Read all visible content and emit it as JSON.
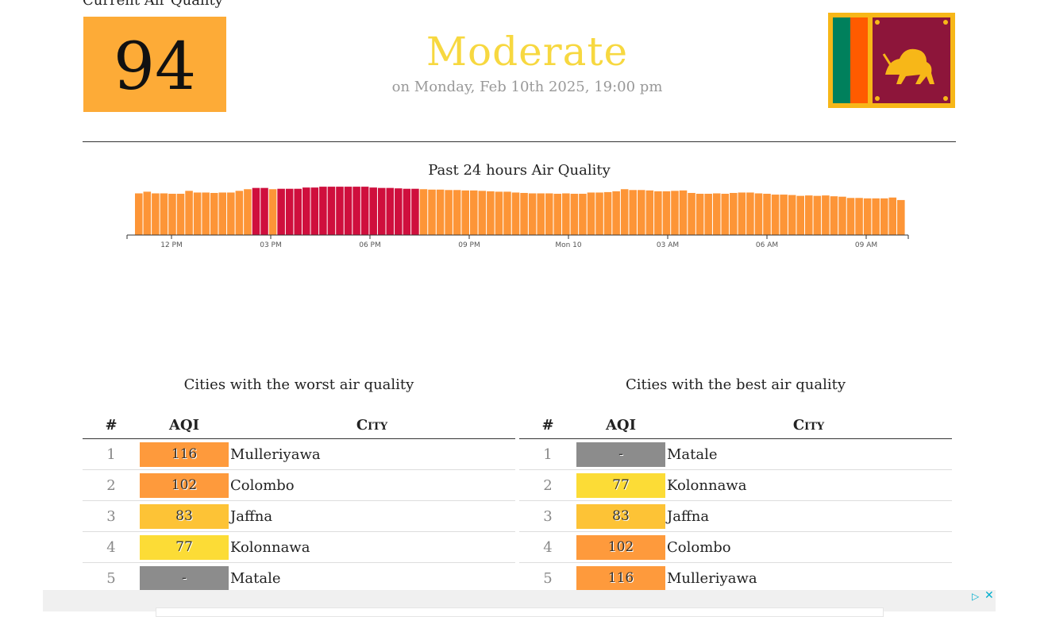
{
  "current": {
    "label": "Current Air Quality",
    "aqi": "94",
    "status": "Moderate",
    "timestamp": "on Monday, Feb 10th 2025, 19:00 pm",
    "box_color": "#fdab37",
    "status_color": "#f7d840"
  },
  "flag": {
    "icon": "sri-lanka-flag"
  },
  "chart_data": {
    "type": "bar",
    "title": "Past 24 hours Air Quality",
    "x_tick_labels": [
      "12 PM",
      "03 PM",
      "06 PM",
      "09 PM",
      "Mon 10",
      "03 AM",
      "06 AM",
      "09 AM"
    ],
    "values": [
      100,
      104,
      100,
      100,
      99,
      99,
      106,
      102,
      102,
      101,
      102,
      102,
      106,
      110,
      113,
      113,
      110,
      111,
      111,
      111,
      114,
      114,
      116,
      116,
      116,
      116,
      116,
      116,
      114,
      113,
      113,
      112,
      111,
      111,
      110,
      109,
      109,
      108,
      108,
      107,
      107,
      106,
      105,
      104,
      104,
      102,
      101,
      100,
      100,
      100,
      99,
      100,
      99,
      99,
      102,
      102,
      103,
      105,
      110,
      108,
      108,
      107,
      105,
      105,
      106,
      107,
      101,
      99,
      99,
      100,
      99,
      101,
      102,
      102,
      100,
      99,
      97,
      97,
      96,
      94,
      95,
      94,
      95,
      93,
      92,
      89,
      89,
      88,
      88,
      88,
      90,
      84
    ],
    "high_threshold": 111,
    "colors": {
      "moderate": "#fd9537",
      "unhealthy": "#cf0f3d"
    },
    "ylim": [
      0,
      200
    ]
  },
  "worst": {
    "title": "Cities with the worst air quality",
    "headers": {
      "rank": "#",
      "aqi": "AQI",
      "city": "City"
    },
    "rows": [
      {
        "rank": "1",
        "aqi": "116",
        "city": "Mulleriyawa",
        "color": "#fe9a3c"
      },
      {
        "rank": "2",
        "aqi": "102",
        "city": "Colombo",
        "color": "#fe9a3c"
      },
      {
        "rank": "3",
        "aqi": "83",
        "city": "Jaffna",
        "color": "#fdc336"
      },
      {
        "rank": "4",
        "aqi": "77",
        "city": "Kolonnawa",
        "color": "#fcdc36"
      },
      {
        "rank": "5",
        "aqi": "-",
        "city": "Matale",
        "color": "#8c8c8c"
      }
    ]
  },
  "best": {
    "title": "Cities with the best air quality",
    "headers": {
      "rank": "#",
      "aqi": "AQI",
      "city": "City"
    },
    "rows": [
      {
        "rank": "1",
        "aqi": "-",
        "city": "Matale",
        "color": "#8c8c8c"
      },
      {
        "rank": "2",
        "aqi": "77",
        "city": "Kolonnawa",
        "color": "#fcdc36"
      },
      {
        "rank": "3",
        "aqi": "83",
        "city": "Jaffna",
        "color": "#fdc336"
      },
      {
        "rank": "4",
        "aqi": "102",
        "city": "Colombo",
        "color": "#fe9a3c"
      },
      {
        "rank": "5",
        "aqi": "116",
        "city": "Mulleriyawa",
        "color": "#fe9a3c"
      }
    ]
  },
  "ad": {
    "play_icon": "ad-choices-icon",
    "close_icon": "close-icon",
    "play_glyph": "▷",
    "close_glyph": "✕"
  }
}
